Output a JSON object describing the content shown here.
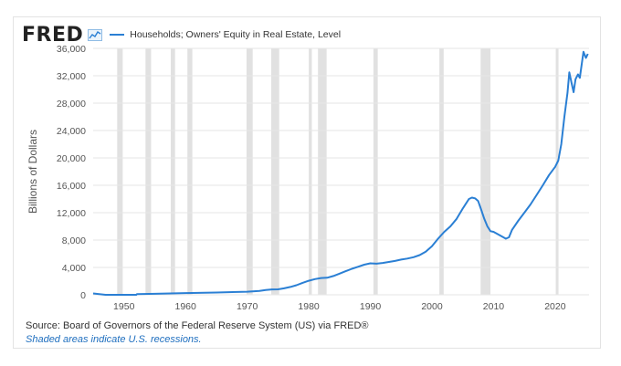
{
  "header": {
    "logo": "FRED",
    "legend_label": "Households; Owners' Equity in Real Estate, Level",
    "series_color": "#2a7fd4"
  },
  "footer": {
    "source": "Source: Board of Governors of the Federal Reserve System (US) via FRED®",
    "note": "Shaded areas indicate U.S. recessions."
  },
  "chart_data": {
    "type": "line",
    "ylabel": "Billions of Dollars",
    "xlim": [
      1945,
      2025.5
    ],
    "ylim": [
      0,
      36000
    ],
    "x_ticks": [
      1950,
      1960,
      1970,
      1980,
      1990,
      2000,
      2010,
      2020
    ],
    "y_ticks": [
      0,
      4000,
      8000,
      12000,
      16000,
      20000,
      24000,
      28000,
      32000,
      36000
    ],
    "y_tick_labels": [
      "0",
      "4,000",
      "8,000",
      "12,000",
      "16,000",
      "20,000",
      "24,000",
      "28,000",
      "32,000",
      "36,000"
    ],
    "recessions": [
      [
        1948.9,
        1949.8
      ],
      [
        1953.5,
        1954.4
      ],
      [
        1957.6,
        1958.3
      ],
      [
        1960.3,
        1961.1
      ],
      [
        1969.9,
        1970.9
      ],
      [
        1973.9,
        1975.2
      ],
      [
        1980.0,
        1980.5
      ],
      [
        1981.5,
        1982.9
      ],
      [
        1990.5,
        1991.2
      ],
      [
        2001.2,
        2001.9
      ],
      [
        2007.9,
        2009.5
      ],
      [
        2020.1,
        2020.3
      ]
    ],
    "series": [
      {
        "name": "Households; Owners' Equity in Real Estate, Level",
        "points": [
          [
            1945.0,
            200
          ],
          [
            1947.0,
            0
          ],
          [
            1952.0,
            0
          ],
          [
            1952.1,
            100
          ],
          [
            1955,
            150
          ],
          [
            1960,
            250
          ],
          [
            1965,
            330
          ],
          [
            1970,
            450
          ],
          [
            1972,
            560
          ],
          [
            1973,
            700
          ],
          [
            1974,
            780
          ],
          [
            1975,
            800
          ],
          [
            1976,
            950
          ],
          [
            1977,
            1150
          ],
          [
            1978,
            1400
          ],
          [
            1979,
            1750
          ],
          [
            1980,
            2050
          ],
          [
            1981,
            2300
          ],
          [
            1982,
            2450
          ],
          [
            1983,
            2500
          ],
          [
            1984,
            2750
          ],
          [
            1985,
            3100
          ],
          [
            1986,
            3450
          ],
          [
            1987,
            3800
          ],
          [
            1988,
            4100
          ],
          [
            1989,
            4400
          ],
          [
            1990,
            4600
          ],
          [
            1991,
            4550
          ],
          [
            1992,
            4650
          ],
          [
            1993,
            4800
          ],
          [
            1994,
            4950
          ],
          [
            1995,
            5150
          ],
          [
            1996,
            5300
          ],
          [
            1997,
            5500
          ],
          [
            1998,
            5800
          ],
          [
            1999,
            6300
          ],
          [
            2000,
            7100
          ],
          [
            2001,
            8200
          ],
          [
            2002,
            9200
          ],
          [
            2003,
            10000
          ],
          [
            2004,
            11100
          ],
          [
            2005,
            12600
          ],
          [
            2006,
            14000
          ],
          [
            2006.5,
            14200
          ],
          [
            2007,
            14100
          ],
          [
            2007.5,
            13700
          ],
          [
            2008,
            12400
          ],
          [
            2008.5,
            11100
          ],
          [
            2009,
            10000
          ],
          [
            2009.5,
            9300
          ],
          [
            2010,
            9200
          ],
          [
            2011,
            8700
          ],
          [
            2012,
            8200
          ],
          [
            2012.5,
            8400
          ],
          [
            2013,
            9500
          ],
          [
            2014,
            10800
          ],
          [
            2015,
            12000
          ],
          [
            2016,
            13200
          ],
          [
            2017,
            14600
          ],
          [
            2018,
            16000
          ],
          [
            2019,
            17500
          ],
          [
            2020,
            18700
          ],
          [
            2020.5,
            19600
          ],
          [
            2021,
            22000
          ],
          [
            2021.5,
            26000
          ],
          [
            2022,
            29500
          ],
          [
            2022.3,
            32500
          ],
          [
            2022.7,
            30800
          ],
          [
            2023.0,
            29600
          ],
          [
            2023.3,
            31500
          ],
          [
            2023.7,
            32200
          ],
          [
            2024.0,
            31700
          ],
          [
            2024.3,
            33600
          ],
          [
            2024.6,
            35500
          ],
          [
            2025.0,
            34600
          ],
          [
            2025.3,
            35200
          ]
        ]
      }
    ]
  }
}
